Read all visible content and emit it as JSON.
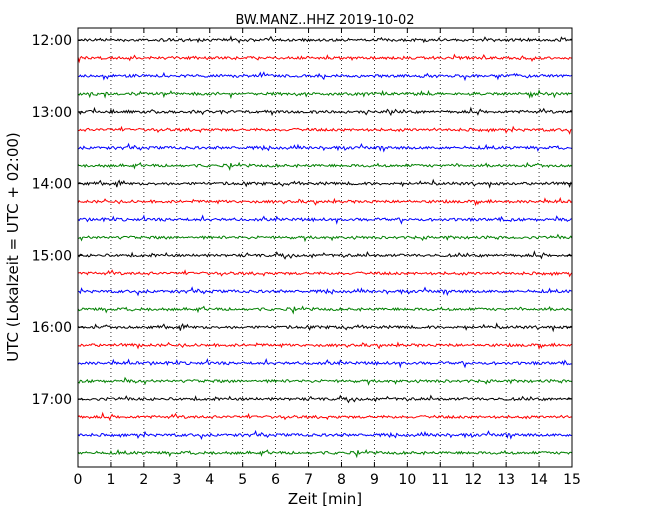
{
  "chart_data": {
    "type": "line",
    "title": "BW.MANZ..HHZ 2019-10-02",
    "xlabel": "Zeit  [min]",
    "ylabel": "UTC (Lokalzeit = UTC + 02:00)",
    "xlim": [
      0,
      15
    ],
    "x_ticks": [
      "0",
      "1",
      "2",
      "3",
      "4",
      "5",
      "6",
      "7",
      "8",
      "9",
      "10",
      "11",
      "12",
      "13",
      "14",
      "15"
    ],
    "vertical_grid": true,
    "grid_style": "dotted",
    "y_tick_labels": [
      "12:00",
      "13:00",
      "14:00",
      "15:00",
      "16:00",
      "17:00"
    ],
    "trace_minutes_per_line": 15,
    "trace_color_cycle": [
      "#000000",
      "#ff0000",
      "#0000ff",
      "#008000"
    ],
    "series": [
      {
        "start": "12:00",
        "color": "#000000"
      },
      {
        "start": "12:15",
        "color": "#ff0000"
      },
      {
        "start": "12:30",
        "color": "#0000ff"
      },
      {
        "start": "12:45",
        "color": "#008000"
      },
      {
        "start": "13:00",
        "color": "#000000"
      },
      {
        "start": "13:15",
        "color": "#ff0000"
      },
      {
        "start": "13:30",
        "color": "#0000ff"
      },
      {
        "start": "13:45",
        "color": "#008000"
      },
      {
        "start": "14:00",
        "color": "#000000"
      },
      {
        "start": "14:15",
        "color": "#ff0000"
      },
      {
        "start": "14:30",
        "color": "#0000ff"
      },
      {
        "start": "14:45",
        "color": "#008000"
      },
      {
        "start": "15:00",
        "color": "#000000"
      },
      {
        "start": "15:15",
        "color": "#ff0000"
      },
      {
        "start": "15:30",
        "color": "#0000ff"
      },
      {
        "start": "15:45",
        "color": "#008000"
      },
      {
        "start": "16:00",
        "color": "#000000"
      },
      {
        "start": "16:15",
        "color": "#ff0000"
      },
      {
        "start": "16:30",
        "color": "#0000ff"
      },
      {
        "start": "16:45",
        "color": "#008000"
      },
      {
        "start": "17:00",
        "color": "#000000"
      },
      {
        "start": "17:15",
        "color": "#ff0000"
      },
      {
        "start": "17:30",
        "color": "#0000ff"
      },
      {
        "start": "17:45",
        "color": "#008000"
      }
    ]
  }
}
